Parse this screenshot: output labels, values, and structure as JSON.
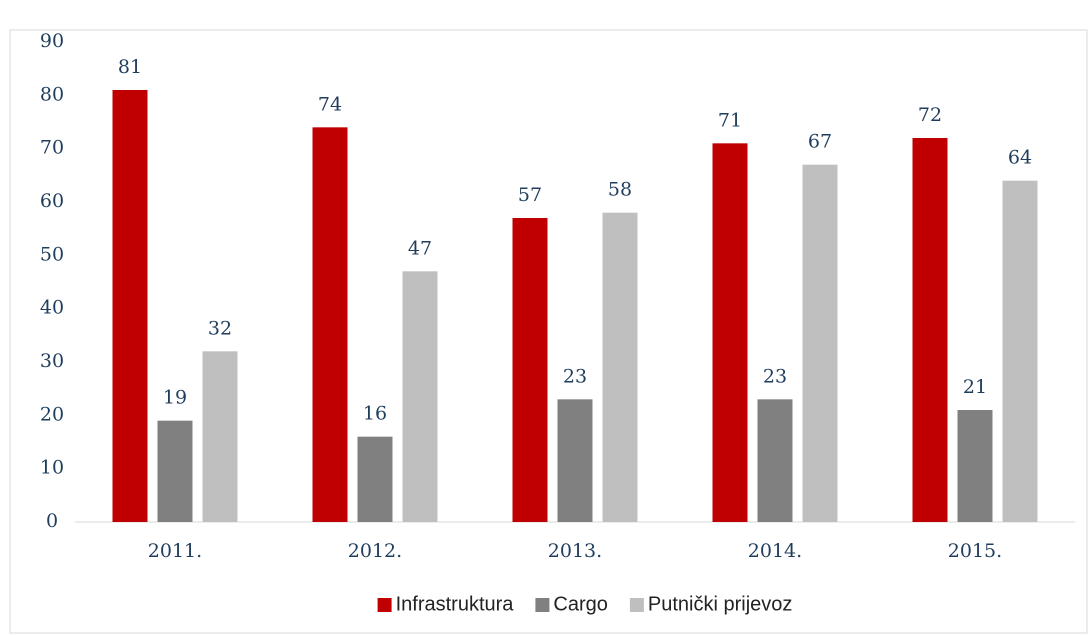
{
  "chart_data": {
    "type": "bar",
    "categories": [
      "2011.",
      "2012.",
      "2013.",
      "2014.",
      "2015."
    ],
    "series": [
      {
        "name": "Infrastruktura",
        "color": "#c00000",
        "values": [
          81,
          74,
          57,
          71,
          72
        ]
      },
      {
        "name": "Cargo",
        "color": "#808080",
        "values": [
          19,
          16,
          23,
          23,
          21
        ]
      },
      {
        "name": "Putnički prijevoz",
        "color": "#bfbfbf",
        "values": [
          32,
          47,
          58,
          67,
          64
        ]
      }
    ],
    "ylim": [
      0,
      90
    ],
    "yticks": [
      0,
      10,
      20,
      30,
      40,
      50,
      60,
      70,
      80,
      90
    ],
    "grid": false,
    "legend": "bottom"
  }
}
